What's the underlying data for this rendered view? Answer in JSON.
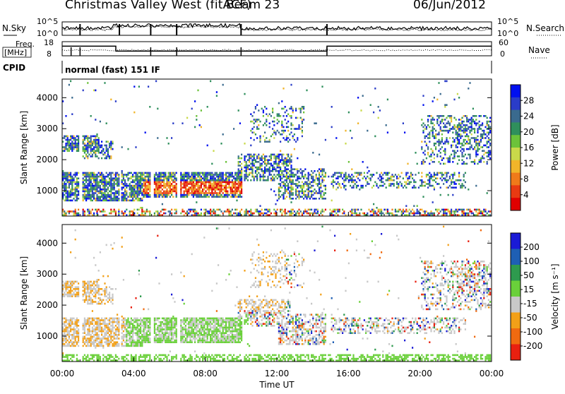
{
  "header": {
    "title": "Christmas Valley West (fitACF)",
    "beam": "Beam 23",
    "date": "06/Jun/2012"
  },
  "chart_data": [
    {
      "type": "line",
      "name": "noise-panel",
      "left_label": "N.Sky",
      "right_label": "N.Search",
      "left_ticks": [
        "10^5",
        "10^0"
      ],
      "right_ticks": [
        "10^5",
        "10^0"
      ]
    },
    {
      "type": "line",
      "name": "frequency-panel",
      "left_label": "Freq. [MHz]",
      "right_label": "Nave",
      "left_ticks": [
        18,
        8
      ],
      "right_ticks": [
        60,
        0
      ],
      "freq_segments": [
        {
          "t0": 0.0,
          "t1": 3.0,
          "mhz": 14.8
        },
        {
          "t0": 3.0,
          "t1": 14.8,
          "mhz": 11.3
        },
        {
          "t0": 14.8,
          "t1": 24.0,
          "mhz": 14.8
        }
      ]
    },
    {
      "type": "table",
      "name": "cpid-panel",
      "label": "CPID",
      "program": "normal (fast) 151 IF"
    },
    {
      "type": "heatmap",
      "name": "power-panel",
      "ylabel": "Slant Range [km]",
      "yticks": [
        1000,
        2000,
        3000,
        4000
      ],
      "ylim": [
        180,
        4600
      ],
      "xlim_hours": [
        0,
        24
      ],
      "colorbar_label": "Power [dB]",
      "colorbar_ticks": [
        "4",
        "8",
        "12",
        "16",
        "20",
        "24",
        "28"
      ],
      "colorbar_colors": [
        "#0010f0",
        "#2a3cc8",
        "#3a6a8e",
        "#2f8f5c",
        "#6cc23a",
        "#c9d94a",
        "#f1b52a",
        "#f07a1a",
        "#e83a12",
        "#e00000"
      ]
    },
    {
      "type": "heatmap",
      "name": "velocity-panel",
      "ylabel": "Slant Range [km]",
      "yticks": [
        1000,
        2000,
        3000,
        4000
      ],
      "ylim": [
        180,
        4600
      ],
      "xlim_hours": [
        0,
        24
      ],
      "xlabel": "Time UT",
      "xticks": [
        "00:00",
        "04:00",
        "08:00",
        "12:00",
        "16:00",
        "20:00",
        "00:00"
      ],
      "colorbar_label": "Velocity [m s⁻¹]",
      "colorbar_ticks": [
        "200",
        "100",
        "50",
        "15",
        "-15",
        "-50",
        "-100",
        "-200"
      ],
      "colorbar_colors": [
        "#1a1ad6",
        "#1e5fb4",
        "#2e9a4e",
        "#6ad03a",
        "#c8c8c8",
        "#f2a018",
        "#f06a10",
        "#e82010"
      ]
    }
  ]
}
